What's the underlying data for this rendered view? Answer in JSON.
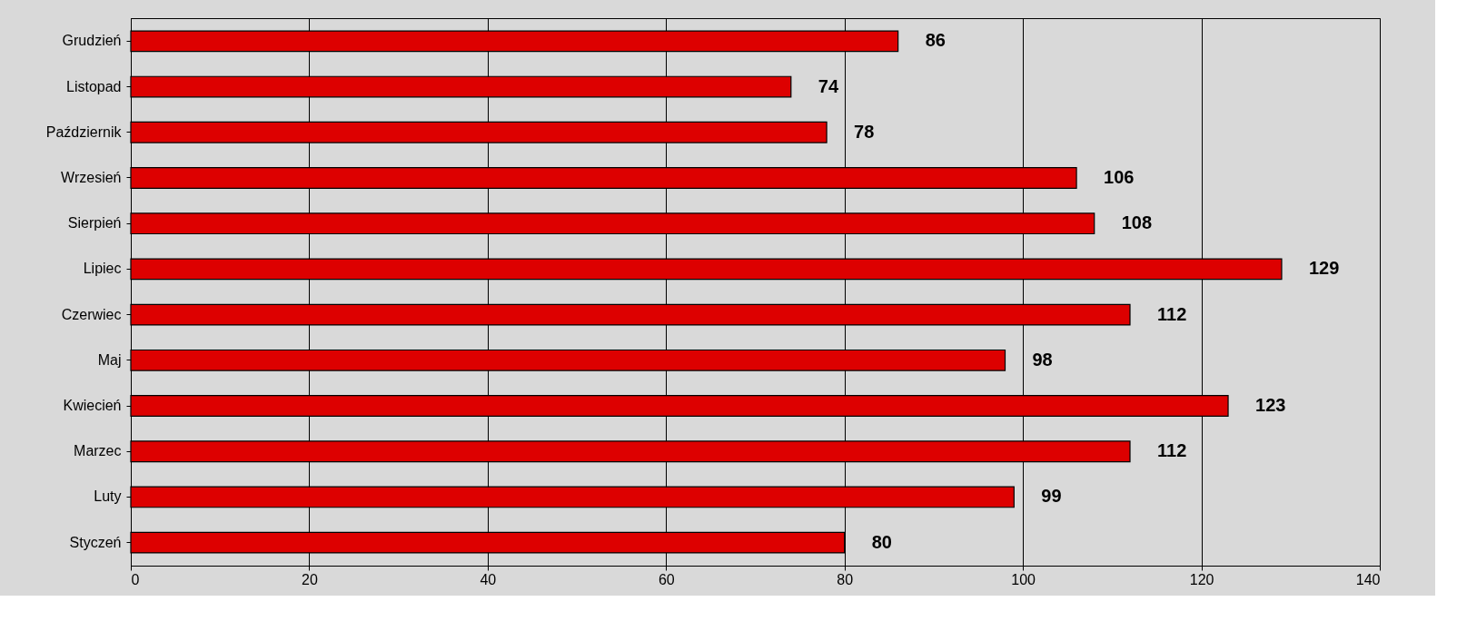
{
  "chart_data": {
    "type": "bar",
    "orientation": "horizontal",
    "categories": [
      "Grudzień",
      "Listopad",
      "Październik",
      "Wrzesień",
      "Sierpień",
      "Lipiec",
      "Czerwiec",
      "Maj",
      "Kwiecień",
      "Marzec",
      "Luty",
      "Styczeń"
    ],
    "values": [
      86,
      74,
      78,
      106,
      108,
      129,
      112,
      98,
      123,
      112,
      99,
      80
    ],
    "color": "#dd0000",
    "xlim": [
      0,
      140
    ],
    "xticks": [
      0,
      20,
      40,
      60,
      80,
      100,
      120,
      140
    ],
    "grid": "x",
    "data_labels": true
  }
}
